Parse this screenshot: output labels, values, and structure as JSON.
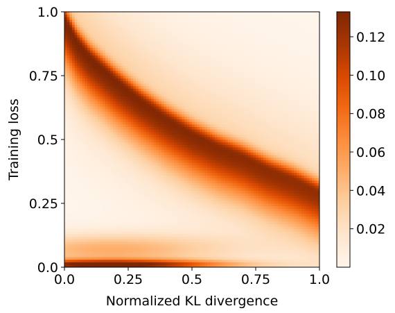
{
  "chart_data": {
    "type": "heatmap",
    "title": "",
    "xlabel": "Normalized KL divergence",
    "ylabel": "Training loss",
    "xlim": [
      0.0,
      1.0
    ],
    "ylim": [
      0.0,
      1.0
    ],
    "x_ticks": [
      {
        "value": 0.0,
        "label": "0.0"
      },
      {
        "value": 0.25,
        "label": "0.25"
      },
      {
        "value": 0.5,
        "label": "0.5"
      },
      {
        "value": 0.75,
        "label": "0.75"
      },
      {
        "value": 1.0,
        "label": "1.0"
      }
    ],
    "y_ticks": [
      {
        "value": 0.0,
        "label": "0.0"
      },
      {
        "value": 0.25,
        "label": "0.25"
      },
      {
        "value": 0.5,
        "label": "0.5"
      },
      {
        "value": 0.75,
        "label": "0.75"
      },
      {
        "value": 1.0,
        "label": "1.0"
      }
    ],
    "colormap": "Oranges",
    "colormap_stops": [
      "#fff5eb",
      "#fee6ce",
      "#fdd0a2",
      "#fdae6b",
      "#fd8d3c",
      "#f16913",
      "#d94801",
      "#a63603",
      "#7f2704"
    ],
    "colorbar": {
      "range": [
        0.0,
        0.133
      ],
      "ticks": [
        {
          "value": 0.02,
          "label": "0.02"
        },
        {
          "value": 0.04,
          "label": "0.04"
        },
        {
          "value": 0.06,
          "label": "0.06"
        },
        {
          "value": 0.08,
          "label": "0.08"
        },
        {
          "value": 0.1,
          "label": "0.10"
        },
        {
          "value": 0.12,
          "label": "0.12"
        }
      ]
    },
    "ridge_curve": {
      "x": [
        0.0,
        0.05,
        0.1,
        0.2,
        0.3,
        0.4,
        0.5,
        0.6,
        0.7,
        0.8,
        0.9,
        1.0
      ],
      "y": [
        0.97,
        0.88,
        0.82,
        0.73,
        0.65,
        0.58,
        0.52,
        0.47,
        0.43,
        0.38,
        0.34,
        0.29
      ],
      "peak_density": 0.1
    },
    "bottom_band": {
      "y_center": 0.01,
      "x_peak": 0.18,
      "peak_density": 0.133
    }
  }
}
